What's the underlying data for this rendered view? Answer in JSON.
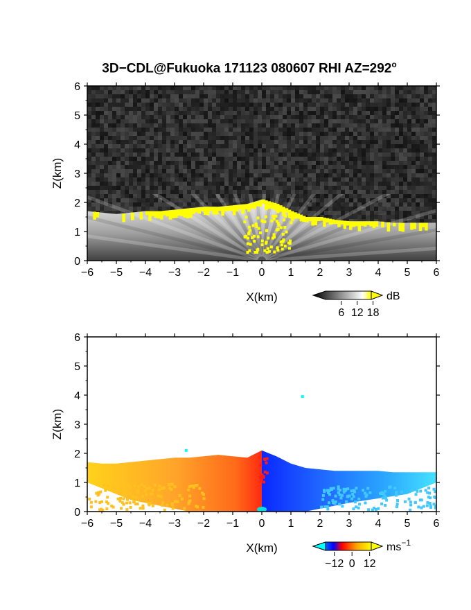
{
  "title": "3D−CDL@Fukuoka 171123 080607 RHI AZ=292",
  "title_degree_sup": "o",
  "chart_data": [
    {
      "type": "heatmap",
      "name": "signal-intensity",
      "xlabel": "X(km)",
      "ylabel": "Z(km)",
      "xlim": [
        -6,
        6
      ],
      "ylim": [
        0,
        6
      ],
      "x_ticks": [
        -6,
        -5,
        -4,
        -3,
        -2,
        -1,
        0,
        1,
        2,
        3,
        4,
        5,
        6
      ],
      "y_ticks": [
        0,
        1,
        2,
        3,
        4,
        5,
        6
      ],
      "x_tick_labels": [
        "−6",
        "−5",
        "−4",
        "−3",
        "−2",
        "−1",
        "0",
        "1",
        "2",
        "3",
        "4",
        "5",
        "6"
      ],
      "y_tick_labels": [
        "0",
        "1",
        "2",
        "3",
        "4",
        "5",
        "6"
      ],
      "colorbar": {
        "unit": "dB",
        "ticks": [
          6,
          12,
          18
        ],
        "tick_labels": [
          "6",
          "12",
          "18"
        ],
        "colors": [
          "#000000",
          "#ffffff",
          "#ffff00"
        ]
      },
      "cloud_top_profile": {
        "x": [
          -6,
          -5.5,
          -5,
          -4.5,
          -4,
          -3.5,
          -3,
          -2.5,
          -2,
          -1.5,
          -1,
          -0.5,
          0,
          0.5,
          1,
          1.5,
          2,
          2.5,
          3,
          3.5,
          4,
          4.5,
          5,
          5.5,
          6
        ],
        "z": [
          1.7,
          1.65,
          1.6,
          1.65,
          1.7,
          1.7,
          1.75,
          1.8,
          1.85,
          1.85,
          1.9,
          1.95,
          2.1,
          1.95,
          1.7,
          1.5,
          1.5,
          1.4,
          1.35,
          1.35,
          1.35,
          1.3,
          1.3,
          1.3,
          1.3
        ]
      },
      "strong_echo_color": "#ffff00",
      "noise_color": "#202020"
    },
    {
      "type": "heatmap",
      "name": "doppler-velocity",
      "xlabel": "X(km)",
      "ylabel": "Z(km)",
      "xlim": [
        -6,
        6
      ],
      "ylim": [
        0,
        6
      ],
      "x_ticks": [
        -6,
        -5,
        -4,
        -3,
        -2,
        -1,
        0,
        1,
        2,
        3,
        4,
        5,
        6
      ],
      "y_ticks": [
        0,
        1,
        2,
        3,
        4,
        5,
        6
      ],
      "x_tick_labels": [
        "−6",
        "−5",
        "−4",
        "−3",
        "−2",
        "−1",
        "0",
        "1",
        "2",
        "3",
        "4",
        "5",
        "6"
      ],
      "y_tick_labels": [
        "0",
        "1",
        "2",
        "3",
        "4",
        "5",
        "6"
      ],
      "colorbar": {
        "unit": "ms",
        "unit_exponent": "−1",
        "ticks": [
          -12,
          0,
          12
        ],
        "tick_labels": [
          "−12",
          "0",
          "12"
        ],
        "colors": [
          "#00ffff",
          "#0000ff",
          "#ff0000",
          "#ffa500",
          "#ffff00"
        ]
      },
      "echo_top_profile": {
        "x": [
          -6,
          -5.5,
          -5,
          -4.5,
          -4,
          -3.5,
          -3,
          -2.5,
          -2,
          -1.5,
          -1,
          -0.5,
          0,
          0.5,
          1,
          1.5,
          2,
          2.5,
          3,
          3.5,
          4,
          4.5,
          5,
          5.5,
          6
        ],
        "z": [
          1.7,
          1.65,
          1.65,
          1.7,
          1.75,
          1.8,
          1.85,
          1.85,
          1.9,
          1.95,
          1.9,
          1.85,
          2.1,
          1.9,
          1.65,
          1.5,
          1.45,
          1.4,
          1.4,
          1.4,
          1.4,
          1.35,
          1.35,
          1.35,
          1.35
        ]
      },
      "isolated_points": [
        {
          "x": -2.6,
          "z": 2.1,
          "color": "#00ffff"
        },
        {
          "x": 1.4,
          "z": 3.95,
          "color": "#00ffff"
        }
      ]
    }
  ]
}
